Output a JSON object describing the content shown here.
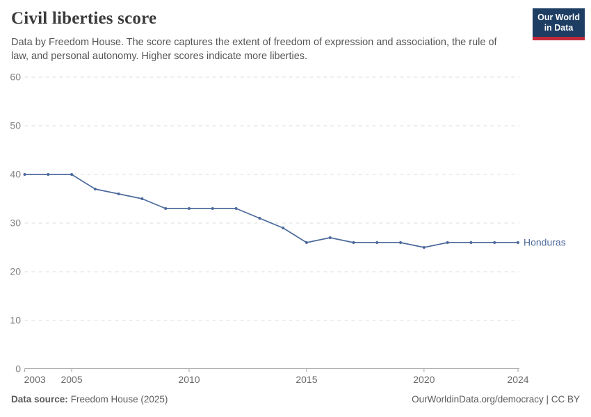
{
  "header": {
    "title": "Civil liberties score",
    "subtitle": "Data by Freedom House. The score captures the extent of freedom of expression and association, the rule of law, and personal autonomy. Higher scores indicate more liberties.",
    "logo": {
      "line1": "Our World",
      "line2": "in Data"
    }
  },
  "chart_data": {
    "type": "line",
    "title": "Civil liberties score",
    "x": [
      2003,
      2004,
      2005,
      2006,
      2007,
      2008,
      2009,
      2010,
      2011,
      2012,
      2013,
      2014,
      2015,
      2016,
      2017,
      2018,
      2019,
      2020,
      2021,
      2022,
      2023,
      2024
    ],
    "series": [
      {
        "name": "Honduras",
        "color": "#4c6a9c",
        "values": [
          40,
          40,
          40,
          37,
          36,
          35,
          33,
          33,
          33,
          33,
          31,
          29,
          26,
          27,
          26,
          26,
          26,
          25,
          26,
          26,
          26,
          26
        ]
      }
    ],
    "x_ticks": [
      2003,
      2005,
      2010,
      2015,
      2020,
      2024
    ],
    "y_ticks": [
      0,
      10,
      20,
      30,
      40,
      50,
      60
    ],
    "xlim": [
      2003,
      2024
    ],
    "ylim": [
      0,
      60
    ],
    "grid": "horizontal-dashed",
    "legend": "line-end-label",
    "end_label": "Honduras"
  },
  "footer": {
    "source_label": "Data source:",
    "source_value": "Freedom House (2025)",
    "right_text": "OurWorldinData.org/democracy | CC BY"
  },
  "colors": {
    "line": "#4c6a9c",
    "series_label": "#4c6a9c",
    "grid": "#dedede",
    "axis": "#a1a1a1",
    "x_tick_label": "#696969",
    "y_tick_label": "#828282",
    "title": "#3b3b3b",
    "subtitle": "#555555",
    "footer": "#5b5b5b",
    "logo_bg": "#1d3d63",
    "logo_bar": "#c2293a"
  }
}
